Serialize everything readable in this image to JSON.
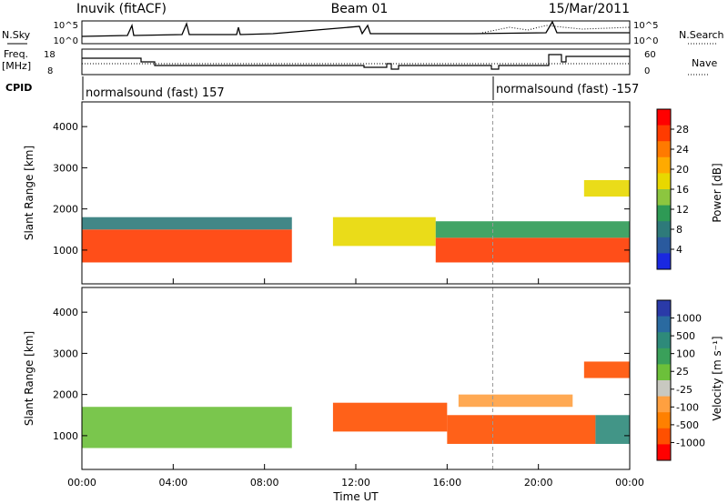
{
  "header": {
    "title_left": "Inuvik (fitACF)",
    "title_center": "Beam 01",
    "title_right": "15/Mar/2011"
  },
  "nsky_panel": {
    "left_label": "N.Sky",
    "right_label": "N.Search",
    "left_ticks": [
      "10^5",
      "10^0"
    ],
    "right_ticks": [
      "10^5",
      "10^0"
    ]
  },
  "freq_panel": {
    "left_label_line1": "Freq.",
    "left_label_line2": "[MHz]",
    "right_label": "Nave",
    "left_ticks": [
      "18",
      "8"
    ],
    "right_ticks": [
      "60",
      "0"
    ]
  },
  "cpid_panel": {
    "label": "CPID",
    "segments": [
      {
        "text": "normalsound (fast) 157",
        "start_hour": 0
      },
      {
        "text": "normalsound (fast) -157",
        "start_hour": 18.0
      }
    ]
  },
  "x_axis": {
    "label": "Time UT",
    "ticks": [
      "00:00",
      "04:00",
      "08:00",
      "12:00",
      "16:00",
      "20:00",
      "00:00"
    ],
    "tick_hours": [
      0,
      4,
      8,
      12,
      16,
      20,
      24
    ]
  },
  "power_panel": {
    "ylabel": "Slant Range [km]",
    "yticks": [
      "4000",
      "3000",
      "2000",
      "1000"
    ],
    "ytick_values": [
      4000,
      3000,
      2000,
      1000
    ],
    "colorbar_label": "Power [dB]",
    "colorbar_ticks": [
      "28",
      "24",
      "20",
      "16",
      "12",
      "8",
      "4"
    ],
    "colors": [
      "#ff0000",
      "#ff3b00",
      "#ff7a00",
      "#ffaa00",
      "#e8d800",
      "#8cc63f",
      "#2e9a55",
      "#2e7a7a",
      "#2a5a9e",
      "#1a28e0"
    ]
  },
  "velocity_panel": {
    "ylabel": "Slant Range [km]",
    "yticks": [
      "4000",
      "3000",
      "2000",
      "1000"
    ],
    "ytick_values": [
      4000,
      3000,
      2000,
      1000
    ],
    "colorbar_label": "Velocity [m s⁻¹]",
    "colorbar_ticks": [
      "1000",
      "500",
      "100",
      "25",
      "-25",
      "-100",
      "-500",
      "-1000"
    ],
    "colors": [
      "#2a3aa8",
      "#2a6aa0",
      "#2e8a7a",
      "#3aa05a",
      "#6cc03a",
      "#c8c8c0",
      "#ffa040",
      "#ff8000",
      "#ff5000",
      "#ff0000"
    ]
  },
  "chart_data": {
    "type": "heatmap",
    "time_range_hours": [
      0,
      24
    ],
    "range_km": [
      180,
      4600
    ],
    "note_markers_hours": [
      18.0
    ],
    "power_bands": [
      {
        "t0": 0.0,
        "t1": 9.2,
        "r0": 700,
        "r1": 1500,
        "level": 28
      },
      {
        "t0": 0.0,
        "t1": 9.2,
        "r0": 1500,
        "r1": 1800,
        "level": 10
      },
      {
        "t0": 11.0,
        "t1": 15.5,
        "r0": 1100,
        "r1": 1800,
        "level": 18
      },
      {
        "t0": 15.5,
        "t1": 24.0,
        "r0": 700,
        "r1": 1300,
        "level": 28
      },
      {
        "t0": 15.5,
        "t1": 24.0,
        "r0": 1300,
        "r1": 1700,
        "level": 12
      },
      {
        "t0": 22.0,
        "t1": 24.0,
        "r0": 2300,
        "r1": 2700,
        "level": 20
      }
    ],
    "velocity_bands": [
      {
        "t0": 0.0,
        "t1": 9.2,
        "r0": 700,
        "r1": 1700,
        "value": 100
      },
      {
        "t0": 11.0,
        "t1": 16.0,
        "r0": 1100,
        "r1": 1800,
        "value": -500
      },
      {
        "t0": 16.0,
        "t1": 22.5,
        "r0": 800,
        "r1": 1500,
        "value": -500
      },
      {
        "t0": 16.5,
        "t1": 21.5,
        "r0": 1700,
        "r1": 2000,
        "value": -25
      },
      {
        "t0": 22.5,
        "t1": 24.0,
        "r0": 800,
        "r1": 1500,
        "value": 500
      },
      {
        "t0": 22.0,
        "t1": 24.0,
        "r0": 2400,
        "r1": 2800,
        "value": -500
      }
    ]
  }
}
